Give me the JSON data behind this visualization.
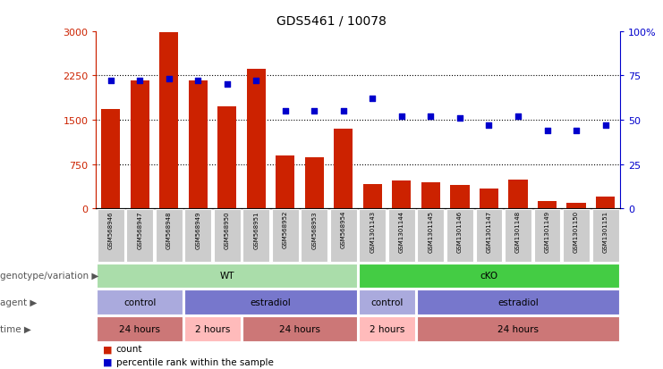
{
  "title": "GDS5461 / 10078",
  "samples": [
    "GSM568946",
    "GSM568947",
    "GSM568948",
    "GSM568949",
    "GSM568950",
    "GSM568951",
    "GSM568952",
    "GSM568953",
    "GSM568954",
    "GSM1301143",
    "GSM1301144",
    "GSM1301145",
    "GSM1301146",
    "GSM1301147",
    "GSM1301148",
    "GSM1301149",
    "GSM1301150",
    "GSM1301151"
  ],
  "counts": [
    1680,
    2160,
    2980,
    2170,
    1730,
    2360,
    900,
    870,
    1350,
    410,
    480,
    440,
    390,
    340,
    490,
    120,
    90,
    200
  ],
  "percentiles": [
    72,
    72,
    73,
    72,
    70,
    72,
    55,
    55,
    55,
    62,
    52,
    52,
    51,
    47,
    52,
    44,
    44,
    47
  ],
  "bar_color": "#cc2200",
  "dot_color": "#0000cc",
  "left_ylim": [
    0,
    3000
  ],
  "right_ylim": [
    0,
    100
  ],
  "left_yticks": [
    0,
    750,
    1500,
    2250,
    3000
  ],
  "right_yticks": [
    0,
    25,
    50,
    75,
    100
  ],
  "right_yticklabels": [
    "0",
    "25",
    "50",
    "75",
    "100%"
  ],
  "bg_color": "#ffffff",
  "tick_color_left": "#cc2200",
  "tick_color_right": "#0000cc",
  "genotype_groups": [
    {
      "label": "WT",
      "start": 0,
      "end": 9,
      "color": "#aaddaa"
    },
    {
      "label": "cKO",
      "start": 9,
      "end": 18,
      "color": "#44cc44"
    }
  ],
  "agent_groups": [
    {
      "label": "control",
      "start": 0,
      "end": 3,
      "color": "#aaaadd"
    },
    {
      "label": "estradiol",
      "start": 3,
      "end": 9,
      "color": "#7777cc"
    },
    {
      "label": "control",
      "start": 9,
      "end": 11,
      "color": "#aaaadd"
    },
    {
      "label": "estradiol",
      "start": 11,
      "end": 18,
      "color": "#7777cc"
    }
  ],
  "time_groups": [
    {
      "label": "24 hours",
      "start": 0,
      "end": 3,
      "color": "#cc7777"
    },
    {
      "label": "2 hours",
      "start": 3,
      "end": 5,
      "color": "#ffbbbb"
    },
    {
      "label": "24 hours",
      "start": 5,
      "end": 9,
      "color": "#cc7777"
    },
    {
      "label": "2 hours",
      "start": 9,
      "end": 11,
      "color": "#ffbbbb"
    },
    {
      "label": "24 hours",
      "start": 11,
      "end": 18,
      "color": "#cc7777"
    }
  ],
  "legend_count_label": "count",
  "legend_pct_label": "percentile rank within the sample",
  "label_row_color": "#cccccc"
}
